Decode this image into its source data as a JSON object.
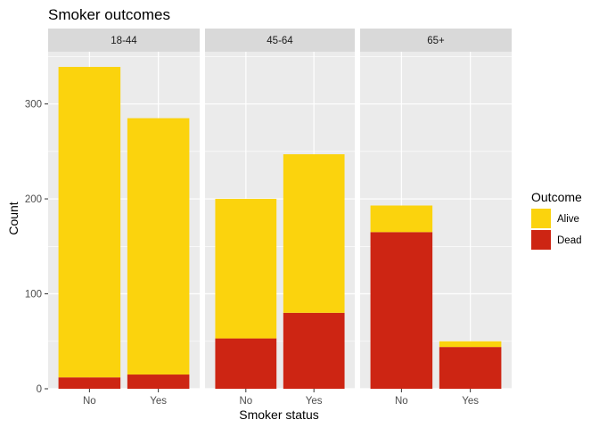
{
  "chart_data": {
    "type": "bar",
    "stacked": true,
    "title": "Smoker outcomes",
    "xlabel": "Smoker status",
    "ylabel": "Count",
    "ylim": [
      0,
      355
    ],
    "yticks": [
      0,
      100,
      200,
      300
    ],
    "categories": [
      "No",
      "Yes"
    ],
    "facets": [
      {
        "label": "18-44",
        "alive": [
          327,
          270
        ],
        "dead": [
          12,
          15
        ]
      },
      {
        "label": "45-64",
        "alive": [
          147,
          167
        ],
        "dead": [
          53,
          80
        ]
      },
      {
        "label": "65+",
        "alive": [
          28,
          6
        ],
        "dead": [
          165,
          44
        ]
      }
    ],
    "legend": {
      "title": "Outcome",
      "placement": "right",
      "entries": [
        {
          "key": "alive",
          "label": "Alive",
          "color": "#FBD30D"
        },
        {
          "key": "dead",
          "label": "Dead",
          "color": "#CD2513"
        }
      ]
    },
    "grid": true,
    "panel_background": "#EBEBEB",
    "strip_background": "#D9D9D9"
  }
}
